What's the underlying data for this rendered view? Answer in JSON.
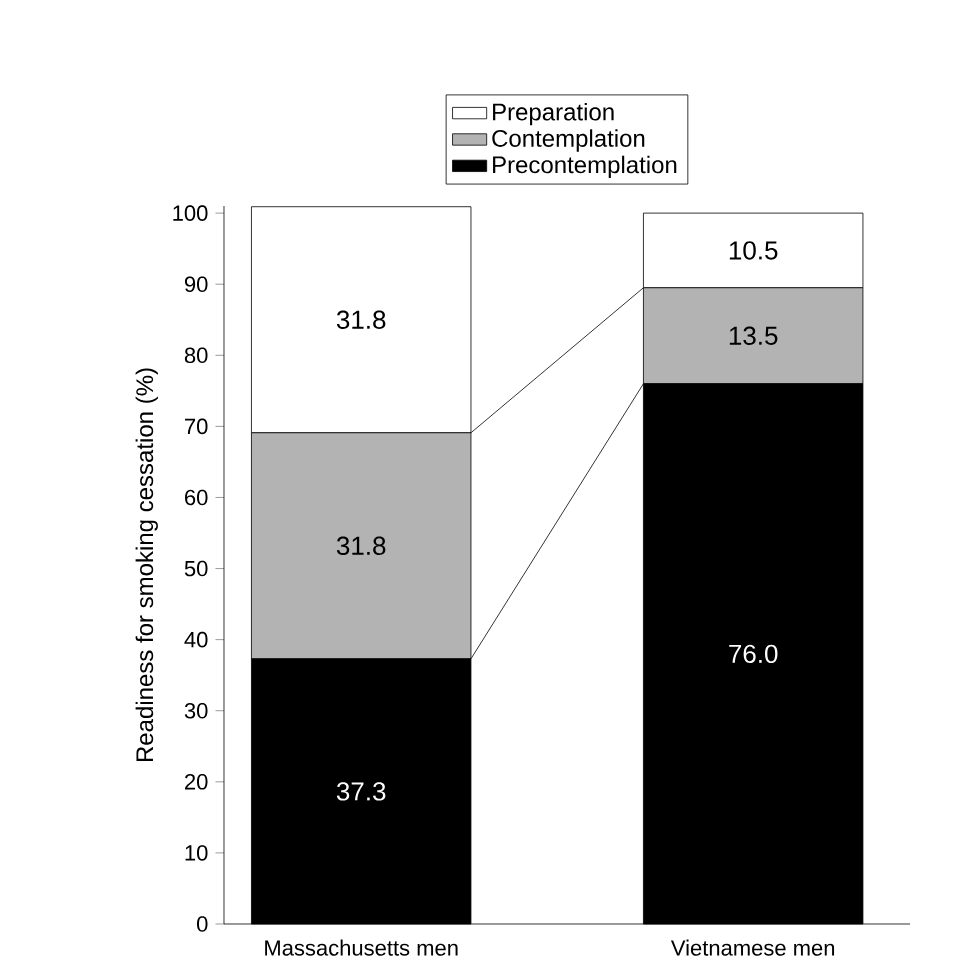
{
  "chart_data": {
    "type": "bar",
    "stacked": true,
    "ylabel": "Readiness for smoking cessation (%)",
    "categories": [
      "Massachusetts men",
      "Vietnamese men"
    ],
    "series": [
      {
        "name": "Precontemplation",
        "color": "#000000",
        "values": [
          37.3,
          76.0
        ],
        "value_labels": [
          "37.3",
          "76.0"
        ]
      },
      {
        "name": "Contemplation",
        "color": "#b3b3b3",
        "values": [
          31.8,
          13.5
        ],
        "value_labels": [
          "31.8",
          "13.5"
        ]
      },
      {
        "name": "Preparation",
        "color": "#ffffff",
        "values": [
          31.8,
          10.5
        ],
        "value_labels": [
          "31.8",
          "10.5"
        ]
      }
    ],
    "ylim": [
      0,
      101
    ],
    "yticks": [
      0,
      10,
      20,
      30,
      40,
      50,
      60,
      70,
      80,
      90,
      100
    ],
    "legend": "top"
  }
}
